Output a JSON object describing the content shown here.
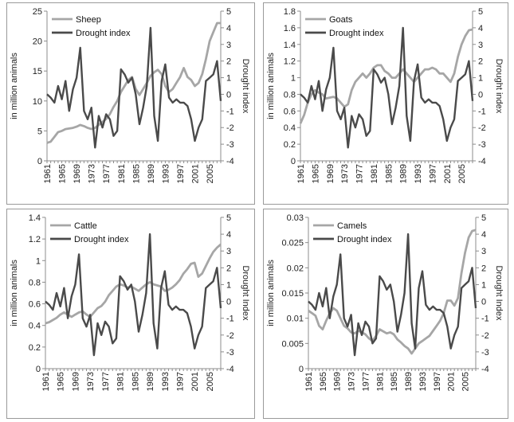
{
  "colors": {
    "livestock": "#a6a6a6",
    "drought": "#4a4a4a",
    "axis": "#8c8c8c",
    "frame": "#9a9a9a"
  },
  "chart_data": [
    {
      "type": "line",
      "ylabel": "in million animals",
      "y2label": "Drought index",
      "x": [
        1961,
        1962,
        1963,
        1964,
        1965,
        1966,
        1967,
        1968,
        1969,
        1970,
        1971,
        1972,
        1973,
        1974,
        1975,
        1976,
        1977,
        1978,
        1979,
        1980,
        1981,
        1982,
        1983,
        1984,
        1985,
        1986,
        1987,
        1988,
        1989,
        1990,
        1991,
        1992,
        1993,
        1994,
        1995,
        1996,
        1997,
        1998,
        1999,
        2000,
        2001,
        2002,
        2003,
        2004,
        2005,
        2006,
        2007,
        2008
      ],
      "xticks": [
        "1961",
        "1965",
        "1969",
        "1973",
        "1977",
        "1981",
        "1985",
        "1989",
        "1993",
        "1997",
        "2001",
        "2005"
      ],
      "ylim": [
        0,
        25
      ],
      "yticks": [
        0,
        5,
        10,
        15,
        20,
        25
      ],
      "y2lim": [
        -4,
        5
      ],
      "y2ticks": [
        -4,
        -3,
        -2,
        -1,
        0,
        1,
        2,
        3,
        4,
        5
      ],
      "legend": [
        "Sheep",
        "Drought index"
      ],
      "series": [
        {
          "name": "Sheep",
          "axis": "left",
          "values": [
            3.0,
            3.2,
            4.0,
            4.8,
            5.0,
            5.3,
            5.4,
            5.5,
            5.7,
            6.0,
            5.8,
            5.5,
            5.3,
            5.5,
            6.0,
            6.5,
            7.0,
            7.8,
            9.0,
            10.0,
            11.5,
            12.5,
            13.5,
            14.0,
            12.0,
            11.0,
            12.0,
            13.0,
            14.2,
            14.8,
            15.2,
            14.5,
            12.5,
            11.5,
            12.0,
            13.0,
            14.0,
            15.5,
            14.0,
            13.5,
            12.5,
            13.0,
            14.5,
            17.0,
            20.0,
            21.5,
            23.0,
            23.0
          ]
        },
        {
          "name": "Drought index",
          "axis": "right",
          "values": [
            0,
            -0.2,
            -0.5,
            0.5,
            -0.3,
            0.8,
            -1.0,
            0.3,
            1.0,
            2.8,
            -1.0,
            -1.5,
            -0.8,
            -3.2,
            -1.3,
            -2.0,
            -1.2,
            -1.5,
            -2.5,
            -2.2,
            1.5,
            1.2,
            0.7,
            1.0,
            0.0,
            -1.8,
            -0.8,
            0.5,
            4.0,
            -1.3,
            -2.8,
            0.8,
            1.8,
            -0.2,
            -0.5,
            -0.3,
            -0.5,
            -0.5,
            -0.7,
            -1.5,
            -2.8,
            -2.0,
            -1.5,
            0.8,
            1.0,
            1.2,
            2.0,
            -0.4
          ]
        }
      ]
    },
    {
      "type": "line",
      "ylabel": "in million animals",
      "y2label": "Drought index",
      "x": [
        1961,
        1962,
        1963,
        1964,
        1965,
        1966,
        1967,
        1968,
        1969,
        1970,
        1971,
        1972,
        1973,
        1974,
        1975,
        1976,
        1977,
        1978,
        1979,
        1980,
        1981,
        1982,
        1983,
        1984,
        1985,
        1986,
        1987,
        1988,
        1989,
        1990,
        1991,
        1992,
        1993,
        1994,
        1995,
        1996,
        1997,
        1998,
        1999,
        2000,
        2001,
        2002,
        2003,
        2004,
        2005,
        2006,
        2007,
        2008
      ],
      "xticks": [
        "1961",
        "1965",
        "1969",
        "1973",
        "1977",
        "1981",
        "1985",
        "1989",
        "1993",
        "1997",
        "2001",
        "2005"
      ],
      "ylim": [
        0,
        1.8
      ],
      "yticks": [
        0,
        0.2,
        0.4,
        0.6,
        0.8,
        1,
        1.2,
        1.4,
        1.6,
        1.8
      ],
      "y2lim": [
        -4,
        5
      ],
      "y2ticks": [
        -4,
        -3,
        -2,
        -1,
        0,
        1,
        2,
        3,
        4,
        5
      ],
      "legend": [
        "Goats",
        "Drought index"
      ],
      "series": [
        {
          "name": "Goats",
          "axis": "left",
          "values": [
            0.45,
            0.55,
            0.7,
            0.8,
            0.85,
            0.82,
            0.8,
            0.75,
            0.76,
            0.77,
            0.75,
            0.7,
            0.65,
            0.68,
            0.85,
            0.95,
            1.0,
            1.05,
            1.0,
            1.05,
            1.12,
            1.15,
            1.15,
            1.08,
            1.05,
            1.0,
            1.0,
            1.05,
            1.1,
            1.05,
            1.0,
            0.95,
            1.0,
            1.05,
            1.1,
            1.1,
            1.12,
            1.1,
            1.05,
            1.05,
            1.0,
            0.95,
            1.05,
            1.25,
            1.4,
            1.5,
            1.57,
            1.58
          ]
        },
        {
          "name": "Drought index",
          "axis": "right",
          "values": [
            0,
            -0.2,
            -0.5,
            0.5,
            -0.3,
            0.8,
            -1.0,
            0.3,
            1.0,
            2.8,
            -1.0,
            -1.5,
            -0.8,
            -3.2,
            -1.3,
            -2.0,
            -1.2,
            -1.5,
            -2.5,
            -2.2,
            1.5,
            1.2,
            0.7,
            1.0,
            0.0,
            -1.8,
            -0.8,
            0.5,
            4.0,
            -1.3,
            -2.8,
            0.8,
            1.8,
            -0.2,
            -0.5,
            -0.3,
            -0.5,
            -0.5,
            -0.7,
            -1.5,
            -2.8,
            -2.0,
            -1.5,
            0.8,
            1.0,
            1.2,
            2.0,
            -0.4
          ]
        }
      ]
    },
    {
      "type": "line",
      "ylabel": "in million animals",
      "y2label": "Drought Index",
      "x": [
        1961,
        1962,
        1963,
        1964,
        1965,
        1966,
        1967,
        1968,
        1969,
        1970,
        1971,
        1972,
        1973,
        1974,
        1975,
        1976,
        1977,
        1978,
        1979,
        1980,
        1981,
        1982,
        1983,
        1984,
        1985,
        1986,
        1987,
        1988,
        1989,
        1990,
        1991,
        1992,
        1993,
        1994,
        1995,
        1996,
        1997,
        1998,
        1999,
        2000,
        2001,
        2002,
        2003,
        2004,
        2005,
        2006,
        2007,
        2008
      ],
      "xticks": [
        "1961",
        "1965",
        "1969",
        "1973",
        "1977",
        "1981",
        "1985",
        "1989",
        "1993",
        "1997",
        "2001",
        "2005"
      ],
      "ylim": [
        0,
        1.4
      ],
      "yticks": [
        0,
        0.2,
        0.4,
        0.6,
        0.8,
        1,
        1.2,
        1.4
      ],
      "y2lim": [
        -4,
        5
      ],
      "y2ticks": [
        -4,
        -3,
        -2,
        -1,
        0,
        1,
        2,
        3,
        4,
        5
      ],
      "legend": [
        "Cattle",
        "Drought index"
      ],
      "series": [
        {
          "name": "Cattle",
          "axis": "left",
          "values": [
            0.42,
            0.43,
            0.45,
            0.47,
            0.5,
            0.52,
            0.5,
            0.48,
            0.5,
            0.52,
            0.53,
            0.5,
            0.48,
            0.52,
            0.56,
            0.58,
            0.62,
            0.68,
            0.72,
            0.76,
            0.78,
            0.77,
            0.75,
            0.76,
            0.74,
            0.72,
            0.75,
            0.78,
            0.8,
            0.78,
            0.77,
            0.76,
            0.72,
            0.73,
            0.75,
            0.78,
            0.82,
            0.88,
            0.92,
            0.97,
            0.98,
            0.85,
            0.88,
            0.95,
            1.02,
            1.08,
            1.12,
            1.15
          ]
        },
        {
          "name": "Drought index",
          "axis": "right",
          "values": [
            0,
            -0.2,
            -0.5,
            0.5,
            -0.3,
            0.8,
            -1.0,
            0.3,
            1.0,
            2.8,
            -1.0,
            -1.5,
            -0.8,
            -3.2,
            -1.3,
            -2.0,
            -1.2,
            -1.5,
            -2.5,
            -2.2,
            1.5,
            1.2,
            0.7,
            1.0,
            0.0,
            -1.8,
            -0.8,
            0.5,
            4.0,
            -1.3,
            -2.8,
            0.8,
            1.8,
            -0.2,
            -0.5,
            -0.3,
            -0.5,
            -0.5,
            -0.7,
            -1.5,
            -2.8,
            -2.0,
            -1.5,
            0.8,
            1.0,
            1.2,
            2.0,
            -0.4
          ]
        }
      ]
    },
    {
      "type": "line",
      "ylabel": "in million animals",
      "y2label": "Drought Index",
      "x": [
        1961,
        1962,
        1963,
        1964,
        1965,
        1966,
        1967,
        1968,
        1969,
        1970,
        1971,
        1972,
        1973,
        1974,
        1975,
        1976,
        1977,
        1978,
        1979,
        1980,
        1981,
        1982,
        1983,
        1984,
        1985,
        1986,
        1987,
        1988,
        1989,
        1990,
        1991,
        1992,
        1993,
        1994,
        1995,
        1996,
        1997,
        1998,
        1999,
        2000,
        2001,
        2002,
        2003,
        2004,
        2005,
        2006,
        2007,
        2008
      ],
      "xticks": [
        "1961",
        "1965",
        "1969",
        "1973",
        "1977",
        "1981",
        "1985",
        "1989",
        "1993",
        "1997",
        "2001",
        "2005"
      ],
      "ylim": [
        0,
        0.03
      ],
      "yticks": [
        0,
        0.005,
        0.01,
        0.015,
        0.02,
        0.025,
        0.03
      ],
      "y2lim": [
        -4,
        5
      ],
      "y2ticks": [
        -4,
        -3,
        -2,
        -1,
        0,
        1,
        2,
        3,
        4,
        5
      ],
      "legend": [
        "Camels",
        "Drought index"
      ],
      "series": [
        {
          "name": "Camels",
          "axis": "left",
          "values": [
            0.0115,
            0.011,
            0.0105,
            0.0085,
            0.0078,
            0.0095,
            0.011,
            0.012,
            0.0115,
            0.01,
            0.0085,
            0.008,
            0.0072,
            0.007,
            0.0075,
            0.0072,
            0.0068,
            0.006,
            0.0055,
            0.0065,
            0.0078,
            0.0074,
            0.007,
            0.0072,
            0.0068,
            0.0058,
            0.0052,
            0.0045,
            0.004,
            0.003,
            0.004,
            0.005,
            0.0055,
            0.006,
            0.0065,
            0.0075,
            0.0085,
            0.0095,
            0.011,
            0.0135,
            0.0135,
            0.0125,
            0.014,
            0.019,
            0.023,
            0.026,
            0.0273,
            0.0275
          ]
        },
        {
          "name": "Drought index",
          "axis": "right",
          "values": [
            0,
            -0.2,
            -0.5,
            0.5,
            -0.3,
            0.8,
            -1.0,
            0.3,
            1.0,
            2.8,
            -1.0,
            -1.5,
            -0.8,
            -3.2,
            -1.3,
            -2.0,
            -1.2,
            -1.5,
            -2.5,
            -2.2,
            1.5,
            1.2,
            0.7,
            1.0,
            0.0,
            -1.8,
            -0.8,
            0.5,
            4.0,
            -1.3,
            -2.8,
            0.8,
            1.8,
            -0.2,
            -0.5,
            -0.3,
            -0.5,
            -0.5,
            -0.7,
            -1.5,
            -2.8,
            -2.0,
            -1.5,
            0.8,
            1.0,
            1.2,
            2.0,
            -0.4
          ]
        }
      ]
    }
  ]
}
